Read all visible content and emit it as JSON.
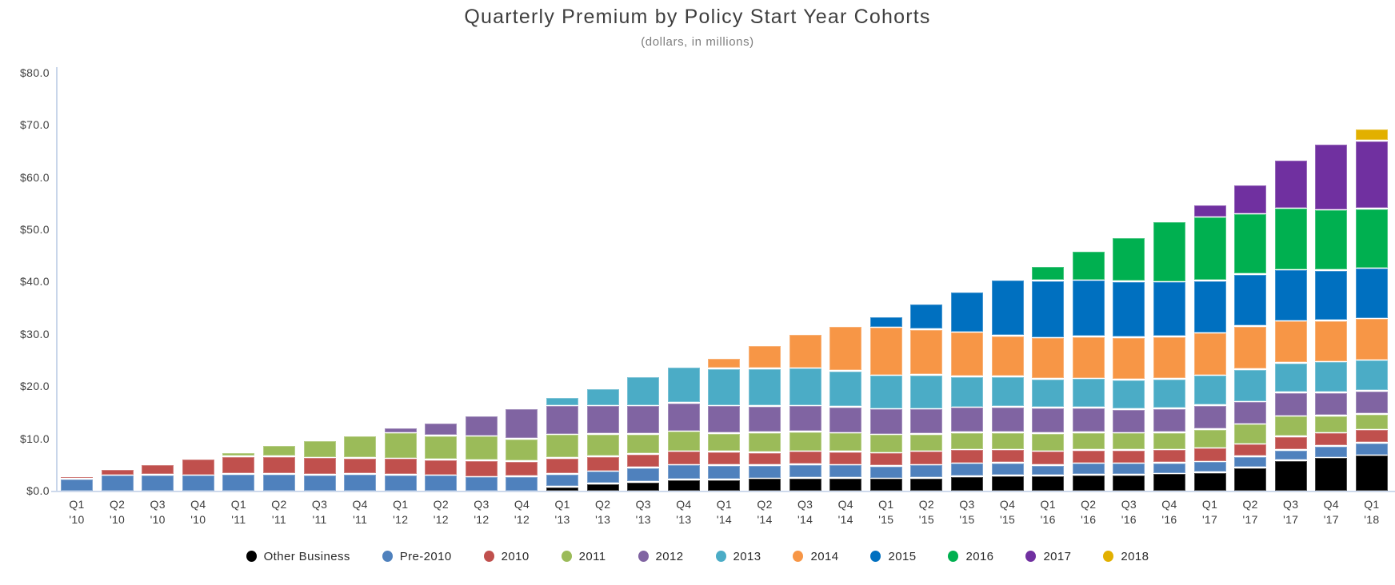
{
  "chart_data": {
    "type": "bar",
    "stacked": true,
    "title": "Quarterly Premium by Policy Start Year Cohorts",
    "subtitle": "(dollars, in millions)",
    "grid": false,
    "legend_position": "bottom",
    "ylim": [
      0,
      80
    ],
    "ytick_step": 10,
    "ytick_labels": [
      "$0.0",
      "$10.0",
      "$20.0",
      "$30.0",
      "$40.0",
      "$50.0",
      "$60.0",
      "$70.0",
      "$80.0"
    ],
    "axis_line_color": "#c9d6ea",
    "text_color": "#3f3f3f",
    "subtitle_color": "#7f7f7f",
    "categories": [
      "Q1 '10",
      "Q2 '10",
      "Q3 '10",
      "Q4 '10",
      "Q1 '11",
      "Q2 '11",
      "Q3 '11",
      "Q4 '11",
      "Q1 '12",
      "Q2 '12",
      "Q3 '12",
      "Q4 '12",
      "Q1 '13",
      "Q2 '13",
      "Q3 '13",
      "Q4 '13",
      "Q1 '14",
      "Q2 '14",
      "Q3 '14",
      "Q4 '14",
      "Q1 '15",
      "Q2 '15",
      "Q3 '15",
      "Q4 '15",
      "Q1 '16",
      "Q2 '16",
      "Q3 '16",
      "Q4 '16",
      "Q1 '17",
      "Q2 '17",
      "Q3 '17",
      "Q4 '17",
      "Q1 '18"
    ],
    "series": [
      {
        "name": "Other Business",
        "color": "#000000",
        "values": [
          0,
          0,
          0,
          0,
          0,
          0,
          0,
          0,
          0,
          0,
          0,
          0,
          0.9,
          1.5,
          1.8,
          2.3,
          2.3,
          2.5,
          2.6,
          2.6,
          2.5,
          2.6,
          2.9,
          3.0,
          3.0,
          3.2,
          3.2,
          3.4,
          3.6,
          4.6,
          5.9,
          6.5,
          6.9
        ]
      },
      {
        "name": "Pre-2010",
        "color": "#4F81BD",
        "values": [
          2.4,
          3.1,
          3.2,
          3.1,
          3.3,
          3.3,
          3.2,
          3.3,
          3.2,
          3.1,
          2.8,
          2.9,
          2.4,
          2.4,
          2.8,
          2.8,
          2.7,
          2.5,
          2.6,
          2.5,
          2.4,
          2.5,
          2.5,
          2.5,
          2.0,
          2.2,
          2.2,
          2.1,
          2.1,
          2.1,
          2.0,
          2.2,
          2.4
        ]
      },
      {
        "name": "2010",
        "color": "#C0504D",
        "values": [
          0.4,
          1.1,
          2.0,
          3.1,
          3.4,
          3.4,
          3.3,
          3.1,
          3.1,
          3.0,
          3.1,
          2.9,
          3.1,
          2.8,
          2.6,
          2.6,
          2.6,
          2.5,
          2.5,
          2.5,
          2.5,
          2.6,
          2.6,
          2.5,
          2.7,
          2.5,
          2.5,
          2.5,
          2.6,
          2.4,
          2.6,
          2.5,
          2.5
        ]
      },
      {
        "name": "2011",
        "color": "#9BBB59",
        "values": [
          0,
          0,
          0,
          0,
          0.8,
          2.1,
          3.2,
          4.3,
          4.9,
          4.6,
          4.7,
          4.3,
          4.5,
          4.3,
          3.8,
          3.8,
          3.5,
          3.8,
          3.7,
          3.6,
          3.5,
          3.3,
          3.3,
          3.3,
          3.4,
          3.4,
          3.3,
          3.3,
          3.6,
          3.8,
          3.9,
          3.3,
          3.0
        ]
      },
      {
        "name": "2012",
        "color": "#8064A2",
        "values": [
          0,
          0,
          0,
          0,
          0,
          0,
          0,
          0,
          0.9,
          2.4,
          3.8,
          5.7,
          5.5,
          5.4,
          5.4,
          5.4,
          5.3,
          5.0,
          5.0,
          5.0,
          4.9,
          4.8,
          4.8,
          4.9,
          4.9,
          4.7,
          4.5,
          4.6,
          4.6,
          4.3,
          4.5,
          4.4,
          4.4
        ]
      },
      {
        "name": "2013",
        "color": "#4BACC6",
        "values": [
          0,
          0,
          0,
          0,
          0,
          0,
          0,
          0,
          0,
          0,
          0,
          0,
          1.6,
          3.3,
          5.6,
          6.9,
          7.1,
          7.2,
          7.2,
          6.9,
          6.4,
          6.5,
          5.9,
          5.8,
          5.5,
          5.6,
          5.7,
          5.6,
          5.7,
          6.2,
          5.7,
          5.9,
          5.9
        ]
      },
      {
        "name": "2014",
        "color": "#F79646",
        "values": [
          0,
          0,
          0,
          0,
          0,
          0,
          0,
          0,
          0,
          0,
          0,
          0,
          0,
          0,
          0,
          0,
          2.0,
          4.4,
          6.4,
          8.5,
          9.2,
          8.7,
          8.5,
          7.8,
          7.9,
          8.0,
          8.1,
          8.1,
          8.1,
          8.2,
          8.0,
          7.9,
          8.0
        ]
      },
      {
        "name": "2015",
        "color": "#0070C0",
        "values": [
          0,
          0,
          0,
          0,
          0,
          0,
          0,
          0,
          0,
          0,
          0,
          0,
          0,
          0,
          0,
          0,
          0,
          0,
          0,
          0,
          2.1,
          4.8,
          7.6,
          10.6,
          10.9,
          10.8,
          10.7,
          10.5,
          10.0,
          10.0,
          9.8,
          9.6,
          9.6
        ]
      },
      {
        "name": "2016",
        "color": "#00B050",
        "values": [
          0,
          0,
          0,
          0,
          0,
          0,
          0,
          0,
          0,
          0,
          0,
          0,
          0,
          0,
          0,
          0,
          0,
          0,
          0,
          0,
          0,
          0,
          0,
          0,
          2.8,
          5.6,
          8.3,
          11.5,
          12.2,
          11.5,
          11.8,
          11.6,
          11.4
        ]
      },
      {
        "name": "2017",
        "color": "#7030A0",
        "values": [
          0,
          0,
          0,
          0,
          0,
          0,
          0,
          0,
          0,
          0,
          0,
          0,
          0,
          0,
          0,
          0,
          0,
          0,
          0,
          0,
          0,
          0,
          0,
          0,
          0,
          0,
          0,
          0,
          2.4,
          5.5,
          9.2,
          12.6,
          13.0
        ]
      },
      {
        "name": "2018",
        "color": "#E2B000",
        "values": [
          0,
          0,
          0,
          0,
          0,
          0,
          0,
          0,
          0,
          0,
          0,
          0,
          0,
          0,
          0,
          0,
          0,
          0,
          0,
          0,
          0,
          0,
          0,
          0,
          0,
          0,
          0,
          0,
          0,
          0,
          0,
          0,
          2.3
        ]
      }
    ]
  }
}
